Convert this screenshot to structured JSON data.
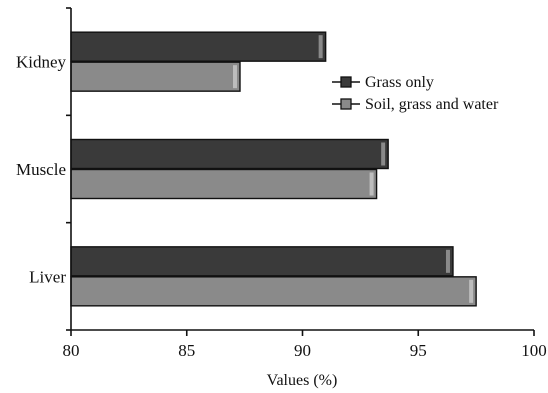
{
  "chart_data": {
    "type": "bar",
    "orientation": "horizontal",
    "categories": [
      "Kidney",
      "Muscle",
      "Liver"
    ],
    "series": [
      {
        "name": "Grass only",
        "values": [
          91.0,
          93.7,
          96.5
        ],
        "color": "#3a3a3a"
      },
      {
        "name": "Soil, grass and water",
        "values": [
          87.3,
          93.2,
          97.5
        ],
        "color": "#8a8a8a"
      }
    ],
    "xlabel": "Values (%)",
    "ylabel": "",
    "title": "",
    "xlim": [
      80,
      100
    ],
    "xticks": [
      "80",
      "85",
      "90",
      "95",
      "100"
    ],
    "grid": false,
    "legend": "right"
  }
}
